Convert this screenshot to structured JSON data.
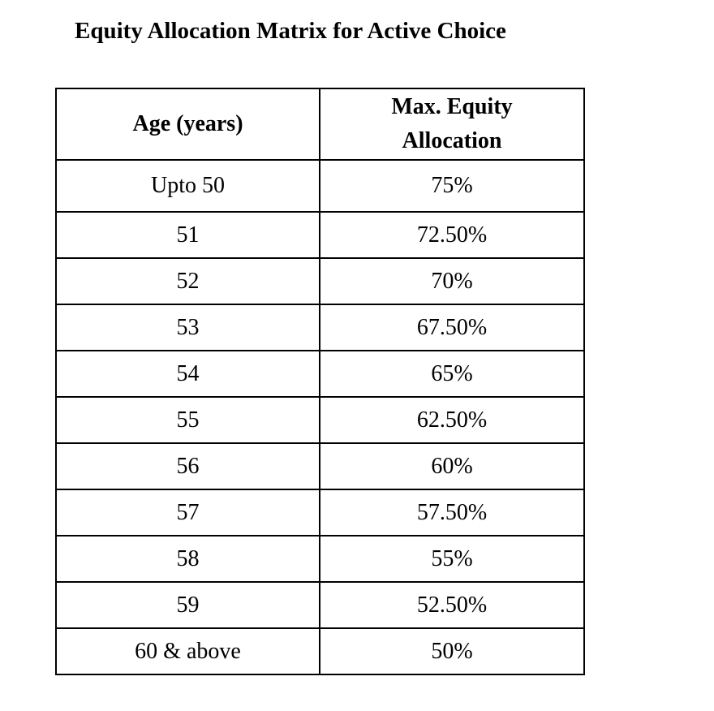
{
  "title": "Equity Allocation Matrix for Active Choice",
  "table": {
    "headers": {
      "age": "Age (years)",
      "equity_line1": "Max. Equity",
      "equity_line2": "Allocation"
    },
    "rows": [
      {
        "age": "Upto 50",
        "equity": "75%"
      },
      {
        "age": "51",
        "equity": "72.50%"
      },
      {
        "age": "52",
        "equity": "70%"
      },
      {
        "age": "53",
        "equity": "67.50%"
      },
      {
        "age": "54",
        "equity": "65%"
      },
      {
        "age": "55",
        "equity": "62.50%"
      },
      {
        "age": "56",
        "equity": "60%"
      },
      {
        "age": "57",
        "equity": "57.50%"
      },
      {
        "age": "58",
        "equity": "55%"
      },
      {
        "age": "59",
        "equity": "52.50%"
      },
      {
        "age": "60 & above",
        "equity": "50%"
      }
    ]
  }
}
